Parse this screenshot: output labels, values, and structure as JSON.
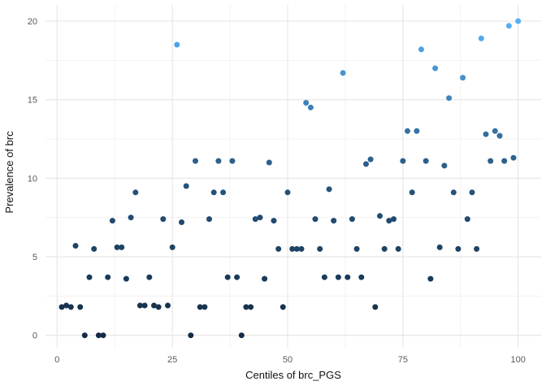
{
  "chart_data": {
    "type": "scatter",
    "title": "",
    "xlabel": "Centiles of brc_PGS",
    "ylabel": "Prevalence of brc",
    "xlim": [
      0,
      100
    ],
    "ylim": [
      0,
      20
    ],
    "x_ticks": [
      0,
      25,
      50,
      75,
      100
    ],
    "x_minor_gridlines": [
      12.5,
      37.5,
      62.5,
      87.5
    ],
    "y_ticks": [
      0,
      5,
      10,
      15,
      20
    ],
    "y_minor_gridlines": [
      2.5,
      7.5,
      12.5,
      17.5
    ],
    "grid": "on",
    "legend": "none",
    "color_scale": {
      "mapped_to": "y",
      "low": "#132B43",
      "mid": "#27567F",
      "high": "#56B1F7"
    },
    "points": [
      [
        1,
        1.8
      ],
      [
        2,
        1.9
      ],
      [
        3,
        1.8
      ],
      [
        4,
        5.7
      ],
      [
        5,
        1.8
      ],
      [
        6,
        0
      ],
      [
        7,
        3.7
      ],
      [
        8,
        5.5
      ],
      [
        9,
        0
      ],
      [
        10,
        0
      ],
      [
        11,
        3.7
      ],
      [
        12,
        7.3
      ],
      [
        13,
        5.6
      ],
      [
        14,
        5.6
      ],
      [
        15,
        3.6
      ],
      [
        16,
        7.5
      ],
      [
        17,
        9.1
      ],
      [
        18,
        1.9
      ],
      [
        19,
        1.9
      ],
      [
        20,
        3.7
      ],
      [
        21,
        1.9
      ],
      [
        22,
        1.8
      ],
      [
        23,
        7.4
      ],
      [
        24,
        1.9
      ],
      [
        25,
        5.6
      ],
      [
        26,
        18.5
      ],
      [
        27,
        7.2
      ],
      [
        28,
        9.5
      ],
      [
        29,
        0
      ],
      [
        30,
        11.1
      ],
      [
        31,
        1.8
      ],
      [
        32,
        1.8
      ],
      [
        33,
        7.4
      ],
      [
        34,
        9.1
      ],
      [
        35,
        11.1
      ],
      [
        36,
        9.1
      ],
      [
        37,
        3.7
      ],
      [
        38,
        11.1
      ],
      [
        39,
        3.7
      ],
      [
        40,
        0
      ],
      [
        41,
        1.8
      ],
      [
        42,
        1.8
      ],
      [
        43,
        7.4
      ],
      [
        44,
        7.5
      ],
      [
        45,
        3.6
      ],
      [
        46,
        11.0
      ],
      [
        47,
        7.3
      ],
      [
        48,
        5.5
      ],
      [
        49,
        1.8
      ],
      [
        50,
        9.1
      ],
      [
        51,
        5.5
      ],
      [
        52,
        5.5
      ],
      [
        53,
        5.5
      ],
      [
        54,
        14.8
      ],
      [
        55,
        14.5
      ],
      [
        56,
        7.4
      ],
      [
        57,
        5.5
      ],
      [
        58,
        3.7
      ],
      [
        59,
        9.3
      ],
      [
        60,
        7.3
      ],
      [
        61,
        3.7
      ],
      [
        62,
        16.7
      ],
      [
        63,
        3.7
      ],
      [
        64,
        7.4
      ],
      [
        65,
        5.5
      ],
      [
        66,
        3.7
      ],
      [
        67,
        10.9
      ],
      [
        68,
        11.2
      ],
      [
        69,
        1.8
      ],
      [
        70,
        7.6
      ],
      [
        71,
        5.5
      ],
      [
        72,
        7.3
      ],
      [
        73,
        7.4
      ],
      [
        74,
        5.5
      ],
      [
        75,
        11.1
      ],
      [
        76,
        13.0
      ],
      [
        77,
        9.1
      ],
      [
        78,
        13.0
      ],
      [
        79,
        18.2
      ],
      [
        80,
        11.1
      ],
      [
        81,
        3.6
      ],
      [
        82,
        17.0
      ],
      [
        83,
        5.6
      ],
      [
        84,
        10.8
      ],
      [
        85,
        15.1
      ],
      [
        86,
        9.1
      ],
      [
        87,
        5.5
      ],
      [
        88,
        16.4
      ],
      [
        89,
        7.4
      ],
      [
        90,
        9.1
      ],
      [
        91,
        5.5
      ],
      [
        92,
        18.9
      ],
      [
        93,
        12.8
      ],
      [
        94,
        11.1
      ],
      [
        95,
        13.0
      ],
      [
        96,
        12.7
      ],
      [
        97,
        11.1
      ],
      [
        98,
        19.7
      ],
      [
        99,
        11.3
      ],
      [
        100,
        20
      ]
    ]
  },
  "colors": {
    "background": "#FFFFFF",
    "grid_major": "#E5E5E5",
    "grid_minor": "#F2F2F2",
    "tick_label": "#595959",
    "axis_title": "#111111"
  }
}
